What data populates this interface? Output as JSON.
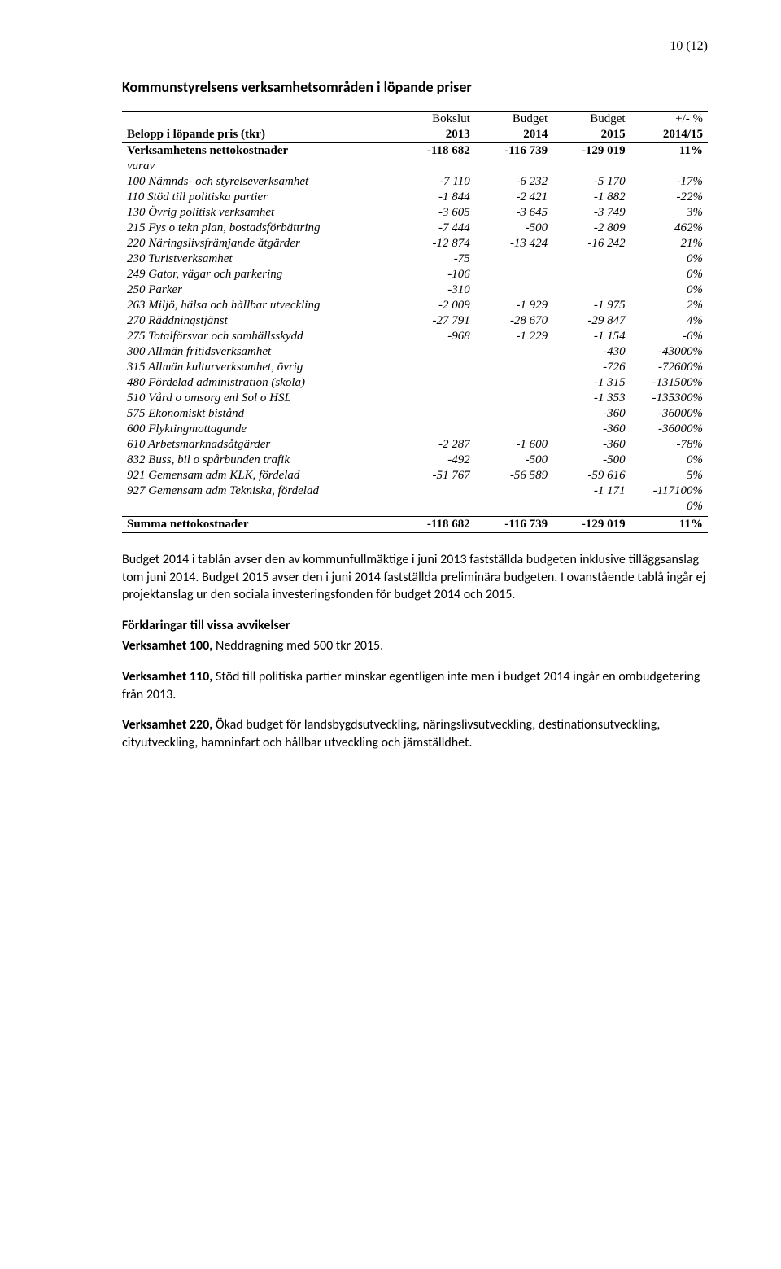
{
  "pageNumber": "10 (12)",
  "sectionTitle": "Kommunstyrelsens verksamhetsområden i löpande priser",
  "table": {
    "header1": {
      "c0": "",
      "c1": "Bokslut",
      "c2": "Budget",
      "c3": "Budget",
      "c4": "+/- %"
    },
    "header2": {
      "c0": "Belopp i löpande pris (tkr)",
      "c1": "2013",
      "c2": "2014",
      "c3": "2015",
      "c4": "2014/15"
    },
    "rows": [
      {
        "label": "Verksamhetens nettokostnader",
        "c1": "-118 682",
        "c2": "-116 739",
        "c3": "-129 019",
        "c4": "11%",
        "bold": true,
        "borderTop": true
      },
      {
        "label": "varav",
        "c1": "",
        "c2": "",
        "c3": "",
        "c4": "",
        "italic": true
      },
      {
        "label": "100 Nämnds- och styrelseverksamhet",
        "c1": "-7 110",
        "c2": "-6 232",
        "c3": "-5 170",
        "c4": "-17%",
        "italic": true
      },
      {
        "label": "110 Stöd till politiska partier",
        "c1": "-1 844",
        "c2": "-2 421",
        "c3": "-1 882",
        "c4": "-22%",
        "italic": true
      },
      {
        "label": "130 Övrig politisk verksamhet",
        "c1": "-3 605",
        "c2": "-3 645",
        "c3": "-3 749",
        "c4": "3%",
        "italic": true
      },
      {
        "label": "215 Fys o tekn plan, bostadsförbättring",
        "c1": "-7 444",
        "c2": "-500",
        "c3": "-2 809",
        "c4": "462%",
        "italic": true
      },
      {
        "label": "220 Näringslivsfrämjande åtgärder",
        "c1": "-12 874",
        "c2": "-13 424",
        "c3": "-16 242",
        "c4": "21%",
        "italic": true
      },
      {
        "label": "230 Turistverksamhet",
        "c1": "-75",
        "c2": "",
        "c3": "",
        "c4": "0%",
        "italic": true
      },
      {
        "label": "249 Gator, vägar och parkering",
        "c1": "-106",
        "c2": "",
        "c3": "",
        "c4": "0%",
        "italic": true
      },
      {
        "label": "250 Parker",
        "c1": "-310",
        "c2": "",
        "c3": "",
        "c4": "0%",
        "italic": true
      },
      {
        "label": "263 Miljö, hälsa och hållbar utveckling",
        "c1": "-2 009",
        "c2": "-1 929",
        "c3": "-1 975",
        "c4": "2%",
        "italic": true
      },
      {
        "label": "270 Räddningstjänst",
        "c1": "-27 791",
        "c2": "-28 670",
        "c3": "-29 847",
        "c4": "4%",
        "italic": true
      },
      {
        "label": "275 Totalförsvar och samhällsskydd",
        "c1": "-968",
        "c2": "-1 229",
        "c3": "-1 154",
        "c4": "-6%",
        "italic": true
      },
      {
        "label": "300 Allmän fritidsverksamhet",
        "c1": "",
        "c2": "",
        "c3": "-430",
        "c4": "-43000%",
        "italic": true
      },
      {
        "label": "315 Allmän kulturverksamhet, övrig",
        "c1": "",
        "c2": "",
        "c3": "-726",
        "c4": "-72600%",
        "italic": true
      },
      {
        "label": "480 Fördelad administration (skola)",
        "c1": "",
        "c2": "",
        "c3": "-1 315",
        "c4": "-131500%",
        "italic": true
      },
      {
        "label": "510 Vård o omsorg enl Sol o HSL",
        "c1": "",
        "c2": "",
        "c3": "-1 353",
        "c4": "-135300%",
        "italic": true
      },
      {
        "label": "575 Ekonomiskt bistånd",
        "c1": "",
        "c2": "",
        "c3": "-360",
        "c4": "-36000%",
        "italic": true
      },
      {
        "label": "600 Flyktingmottagande",
        "c1": "",
        "c2": "",
        "c3": "-360",
        "c4": "-36000%",
        "italic": true
      },
      {
        "label": "610 Arbetsmarknadsåtgärder",
        "c1": "-2 287",
        "c2": "-1 600",
        "c3": "-360",
        "c4": "-78%",
        "italic": true
      },
      {
        "label": "832 Buss, bil o spårbunden trafik",
        "c1": "-492",
        "c2": "-500",
        "c3": "-500",
        "c4": "0%",
        "italic": true
      },
      {
        "label": "921 Gemensam adm KLK, fördelad",
        "c1": "-51 767",
        "c2": "-56 589",
        "c3": "-59 616",
        "c4": "5%",
        "italic": true
      },
      {
        "label": "927 Gemensam adm Tekniska, fördelad",
        "c1": "",
        "c2": "",
        "c3": "-1 171",
        "c4": "-117100%",
        "italic": true
      },
      {
        "label": "",
        "c1": "",
        "c2": "",
        "c3": "",
        "c4": "0%",
        "italic": true
      },
      {
        "label": "",
        "c1": "",
        "c2": "",
        "c3": "",
        "c4": "",
        "borderBottom": true
      }
    ],
    "summary": {
      "label": "Summa nettokostnader",
      "c1": "-118 682",
      "c2": "-116 739",
      "c3": "-129 019",
      "c4": "11%",
      "bold": true,
      "borderBottom": true
    }
  },
  "notesIntro": "Budget 2014 i tablån avser den av kommunfullmäktige i juni 2013 fastställda budgeten inklusive tilläggsanslag tom juni 2014.  Budget 2015 avser den i juni 2014 fastställda preliminära budgeten. I ovanstående tablå ingår ej projektanslag ur den sociala investeringsfonden för budget 2014 och 2015.",
  "notesExplHeading": "Förklaringar till vissa avvikelser",
  "note100": {
    "prefix": "Verksamhet 100,",
    "rest": " Neddragning med 500 tkr 2015."
  },
  "note110": {
    "prefix": "Verksamhet 110,",
    "rest": " Stöd till politiska partier minskar egentligen inte men i budget 2014 ingår en ombudgetering från 2013."
  },
  "note220": {
    "prefix": "Verksamhet 220,",
    "rest": " Ökad budget för landsbygdsutveckling, näringslivsutveckling, destinationsutveckling, cityutveckling, hamninfart och hållbar utveckling och jämställdhet."
  }
}
